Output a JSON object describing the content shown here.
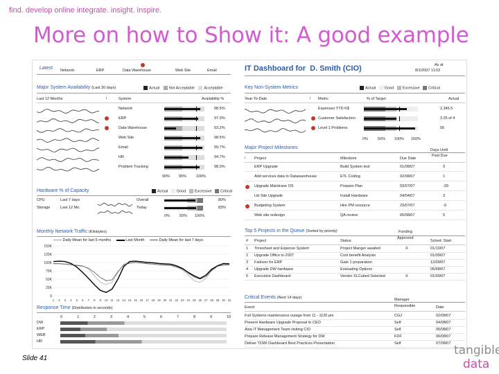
{
  "tagline": "find. develop online integrate. insight. inspire.",
  "slide_title": "More on how to Show it: A good example",
  "slide_number": "Slide 41",
  "logo": {
    "line1": "tangible",
    "line2": "data"
  },
  "colors": {
    "title": "#d25bd1",
    "accent": "#c24fa5",
    "section": "#2a5ca8",
    "alert": "#c0392b"
  },
  "tabs": {
    "latest": "Latest",
    "items": [
      "Network",
      "ERP",
      "Data Warehouse",
      "Web Site",
      "Email"
    ]
  },
  "dashboard": {
    "title_prefix": "IT Dashboard for",
    "title_name": "D. Smith (CIO)",
    "as_at_label": "As at",
    "as_at_value": "8/1/2007 11:02"
  },
  "major_system": {
    "title": "Major System Availability",
    "subtitle": "(Last 30 days)",
    "legend": [
      "Actual",
      "Not Acceptable",
      "Acceptable"
    ],
    "col_period": "Last 12 Months",
    "col_alert": "!",
    "col_system": "System",
    "col_availability": "Availability %",
    "rows": [
      {
        "system": "Network",
        "value": "98.5%",
        "alert": false,
        "fill": 0.9
      },
      {
        "system": "ERP",
        "value": "97.9%",
        "alert": true,
        "fill": 0.85
      },
      {
        "system": "Data Warehouse",
        "value": "93.2%",
        "alert": true,
        "fill": 0.3
      },
      {
        "system": "Web Site",
        "value": "98.5%",
        "alert": false,
        "fill": 0.9
      },
      {
        "system": "Email",
        "value": "99.7%",
        "alert": false,
        "fill": 0.95
      },
      {
        "system": "HR",
        "value": "94.7%",
        "alert": false,
        "fill": 0.6
      },
      {
        "system": "Problem Tracking",
        "value": "98.0%",
        "alert": false,
        "fill": 0.88
      }
    ],
    "scale": [
      "90%",
      "95%",
      "100%"
    ]
  },
  "hardware": {
    "title": "Hardware % of Capacity",
    "legend": [
      "Actual",
      "Good",
      "Excessive",
      "Critical"
    ],
    "rows": [
      {
        "name": "CPU",
        "period": "Last 7 days",
        "status": "Overall",
        "value": "80%",
        "fill": 0.8
      },
      {
        "name": "Storage",
        "period": "Last 12 Mo.",
        "status": "Today",
        "value": "83%",
        "fill": 0.83
      }
    ],
    "scale": [
      "0%",
      "50%",
      "100%"
    ]
  },
  "network": {
    "title": "Monthly Network Traffic",
    "unit": "(Kilobytes)",
    "legend": [
      "Daily Mean for last 6 months",
      "Last Month",
      "Daily Mean for last 7 days"
    ]
  },
  "response": {
    "title": "Response Time",
    "subtitle": "(Distribution in seconds)",
    "scale": [
      "0",
      "1",
      "2",
      "3",
      "4",
      "5",
      "6",
      "7",
      "8",
      "9",
      "10"
    ],
    "rows": [
      "DW",
      "ERP",
      "WEB",
      "HR"
    ]
  },
  "key_metrics": {
    "title": "Key Non-System Metrics",
    "legend": [
      "Actual",
      "Good",
      "Excessive",
      "Critical"
    ],
    "col_period": "Year-To-Date",
    "col_alert": "!",
    "col_metric": "Metric",
    "col_target": "% of Target",
    "col_actual": "Actual",
    "rows": [
      {
        "metric": "Expenses YTD K$",
        "actual": "2,345.5",
        "alert": false,
        "fill": 0.8
      },
      {
        "metric": "Customer Satisfaction",
        "actual": "3.25 of 4",
        "alert": true,
        "fill": 0.6
      },
      {
        "metric": "Level 1 Problems",
        "actual": "56",
        "alert": true,
        "fill": 0.95
      }
    ],
    "scale": [
      "0%",
      "50%",
      "100%",
      "150%"
    ]
  },
  "milestones": {
    "title": "Major Project Milestones",
    "col_alert": "!",
    "col_project": "Project",
    "col_milestone": "Milestone",
    "col_due": "Due Date",
    "col_days_a": "Days Until",
    "col_days_b": "Past Due",
    "rows": [
      {
        "project": "ERP Upgrade",
        "milestone": "Build System test",
        "due": "01/08/07",
        "days": "0",
        "alert": false
      },
      {
        "project": "Add services data to Datawarehouse",
        "milestone": "ETL Coding",
        "due": "02/08/07",
        "days": "1",
        "alert": false
      },
      {
        "project": "Upgrade Maintrane OS",
        "milestone": "Prepare Plan",
        "due": "03/07/07",
        "days": "-29",
        "alert": true
      },
      {
        "project": "Lib Site Upgrade",
        "milestone": "Install Hardware",
        "due": "04/04/07",
        "days": "3",
        "alert": false
      },
      {
        "project": "Budgeting System",
        "milestone": "Hire PM resource",
        "due": "23/07/07",
        "days": "-9",
        "alert": true
      },
      {
        "project": "Web site redesign",
        "milestone": "QA review",
        "due": "05/08/07",
        "days": "5",
        "alert": false
      }
    ]
  },
  "queue": {
    "title": "Top 5 Projects in the Queue",
    "subtitle": "(Sorted by priority)",
    "col_num": "#",
    "col_project": "Project",
    "col_status": "Status",
    "col_funding_a": "Funding",
    "col_funding_b": "Approved",
    "col_start": "Sched. Start",
    "rows": [
      {
        "num": "1",
        "project": "Timesheet and Expense System",
        "status": "Project Manger awaited",
        "funded": "X",
        "start": "01/10/07"
      },
      {
        "num": "2",
        "project": "Upgrade Office to 2007",
        "status": "Cost benefit Analysis",
        "funded": "",
        "start": "01/09/07"
      },
      {
        "num": "3",
        "project": "Failover for ERP",
        "status": "Gate 1 preparation",
        "funded": "",
        "start": "12/09/07"
      },
      {
        "num": "4",
        "project": "Upgrade DW hardware",
        "status": "Evaluating Options",
        "funded": "",
        "start": "05/08/07"
      },
      {
        "num": "5",
        "project": "Executive Dashboard",
        "status": "Vendor XLCubed Selected",
        "funded": "X",
        "start": "01/09/07"
      }
    ]
  },
  "events": {
    "title": "Critical Events",
    "subtitle": "(Next 14 days)",
    "col_event": "Event",
    "col_manager_a": "Manager",
    "col_manager_b": "Responsible",
    "col_date": "Date",
    "rows": [
      {
        "event": "Full Systems maintenance outage from 11 - 1120 pm",
        "manager": "CGJ",
        "date": "02/08/07"
      },
      {
        "event": "Present Hardware Upgrade Proposal to CEO",
        "manager": "Self",
        "date": "04/08/07"
      },
      {
        "event": "Asia IT Management Team visiting CIO",
        "manager": "Self",
        "date": "05/08/07"
      },
      {
        "event": "Prepare Release Management Strategy for DW",
        "manager": "FDF",
        "date": "06/08/07"
      },
      {
        "event": "Deliver TDWI Dashboard Best Practices Presentation",
        "manager": "Self",
        "date": "07/08/07"
      }
    ]
  },
  "chart_data": {
    "type": "line",
    "title": "Monthly Network Traffic",
    "ylabel": "(Kilobytes)",
    "x": [
      "1",
      "2",
      "3",
      "4",
      "5",
      "6",
      "7",
      "8",
      "9",
      "10",
      "11",
      "12",
      "13",
      "14",
      "15",
      "16",
      "17",
      "18",
      "19",
      "20",
      "21",
      "22",
      "23",
      "24",
      "25",
      "26",
      "27",
      "28",
      "29",
      "30",
      "31"
    ],
    "yticks": [
      "150K",
      "125K",
      "100K",
      "75K",
      "50K",
      "25K",
      "0"
    ],
    "ylim": [
      0,
      150000
    ],
    "grid": true,
    "series": [
      {
        "name": "Daily Mean for last 6 months",
        "values": [
          98000,
          97000,
          96000,
          94000,
          92000,
          90000,
          80000,
          60000,
          40000,
          34000,
          40000,
          70000,
          95000,
          100000,
          101000,
          98000,
          97000,
          95000,
          94000,
          93000,
          92000,
          88000,
          78000,
          62000,
          45000,
          40000,
          52000,
          78000,
          92000,
          94000,
          95000
        ]
      },
      {
        "name": "Last Month",
        "values": [
          103000,
          104000,
          103000,
          97000,
          86000,
          70000,
          52000,
          33000,
          16000,
          10000,
          20000,
          50000,
          88000,
          103000,
          104000,
          102000,
          100000,
          99000,
          97000,
          96000,
          95000,
          90000,
          82000,
          70000,
          60000,
          52000,
          62000,
          80000,
          90000,
          97000,
          96000
        ]
      },
      {
        "name": "Daily Mean for last 7 days",
        "values": [
          96000,
          96000,
          95000,
          93000,
          91000,
          89000,
          83000,
          70000,
          55000,
          45000,
          48000,
          72000,
          93000,
          98000,
          100000,
          98000,
          96000,
          95000,
          93000,
          92000,
          91000,
          86000,
          80000,
          68000,
          56000,
          50000,
          58000,
          76000,
          89000,
          92000,
          93000
        ]
      }
    ]
  }
}
